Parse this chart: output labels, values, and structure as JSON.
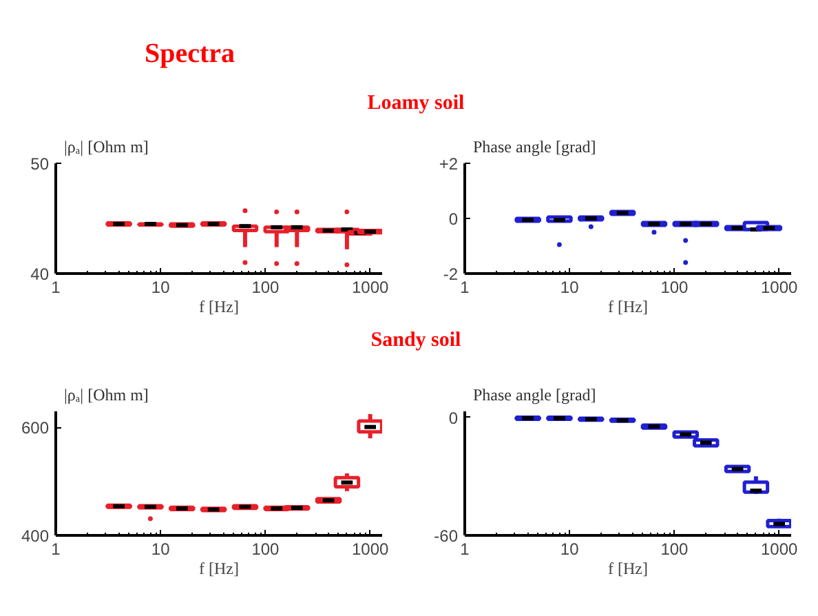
{
  "chart_data": [
    {
      "type": "box",
      "title": "Loamy soil",
      "annotations": [
        "Spectra"
      ],
      "ylabel": "|ρₐ| [Ohm m]",
      "xlabel": "f [Hz]",
      "log": "x",
      "grid": false,
      "xlim": [
        1,
        1300
      ],
      "xticks": [
        1,
        10,
        100,
        1000
      ],
      "ylim": [
        40,
        50
      ],
      "yticks": [
        40,
        50
      ],
      "series": [
        {
          "color": "#e8202a",
          "x": [
            4,
            8,
            16,
            32,
            64,
            128,
            200,
            400,
            600,
            800,
            1000
          ],
          "boxes": [
            {
              "low": 44.4,
              "q1": 44.4,
              "median": 44.5,
              "q3": 44.6,
              "high": 44.6
            },
            {
              "low": 44.4,
              "q1": 44.4,
              "median": 44.5,
              "q3": 44.5,
              "high": 44.6
            },
            {
              "low": 44.3,
              "q1": 44.3,
              "median": 44.4,
              "q3": 44.5,
              "high": 44.5
            },
            {
              "low": 44.4,
              "q1": 44.4,
              "median": 44.5,
              "q3": 44.6,
              "high": 44.6
            },
            {
              "low": 42.4,
              "q1": 43.9,
              "median": 44.3,
              "q3": 44.3,
              "high": 44.4,
              "outliers": [
                45.7,
                41.0
              ]
            },
            {
              "low": 42.4,
              "q1": 43.8,
              "median": 44.2,
              "q3": 44.2,
              "high": 44.3,
              "outliers": [
                45.6,
                40.9
              ]
            },
            {
              "low": 42.4,
              "q1": 43.9,
              "median": 44.2,
              "q3": 44.2,
              "high": 44.3,
              "outliers": [
                45.6,
                40.9
              ]
            },
            {
              "low": 43.8,
              "q1": 43.8,
              "median": 43.9,
              "q3": 44.0,
              "high": 44.0
            },
            {
              "low": 42.2,
              "q1": 43.8,
              "median": 44.0,
              "q3": 44.0,
              "high": 44.1,
              "outliers": [
                45.6,
                40.8
              ]
            },
            {
              "low": 43.6,
              "q1": 43.6,
              "median": 43.7,
              "q3": 43.8,
              "high": 43.8
            },
            {
              "low": 43.7,
              "q1": 43.7,
              "median": 43.8,
              "q3": 43.9,
              "high": 43.9
            }
          ]
        }
      ]
    },
    {
      "type": "box",
      "ylabel": "Phase angle [grad]",
      "xlabel": "f [Hz]",
      "log": "x",
      "grid": false,
      "xlim": [
        1,
        1300
      ],
      "xticks": [
        1,
        10,
        100,
        1000
      ],
      "ylim": [
        -2,
        2
      ],
      "yticks": [
        -2,
        0,
        {
          "value": 2,
          "label": "+2"
        }
      ],
      "series": [
        {
          "color": "#2020d0",
          "x": [
            4,
            8,
            16,
            32,
            64,
            128,
            200,
            400,
            600,
            800
          ],
          "boxes": [
            {
              "low": -0.1,
              "q1": -0.1,
              "median": -0.05,
              "q3": 0.0,
              "high": 0.0
            },
            {
              "low": -0.15,
              "q1": -0.1,
              "median": -0.05,
              "q3": 0.05,
              "high": 0.05,
              "outliers": [
                -0.95
              ]
            },
            {
              "low": -0.05,
              "q1": -0.05,
              "median": 0.0,
              "q3": 0.05,
              "high": 0.05,
              "outliers": [
                -0.3
              ]
            },
            {
              "low": 0.15,
              "q1": 0.15,
              "median": 0.2,
              "q3": 0.25,
              "high": 0.25
            },
            {
              "low": -0.25,
              "q1": -0.25,
              "median": -0.2,
              "q3": -0.15,
              "high": -0.15,
              "outliers": [
                -0.5
              ]
            },
            {
              "low": -0.25,
              "q1": -0.25,
              "median": -0.2,
              "q3": -0.15,
              "high": -0.15,
              "outliers": [
                -0.8,
                -1.6
              ]
            },
            {
              "low": -0.25,
              "q1": -0.25,
              "median": -0.2,
              "q3": -0.15,
              "high": -0.15
            },
            {
              "low": -0.4,
              "q1": -0.4,
              "median": -0.35,
              "q3": -0.3,
              "high": -0.3
            },
            {
              "low": -0.45,
              "q1": -0.4,
              "median": -0.4,
              "q3": -0.15,
              "high": -0.15
            },
            {
              "low": -0.4,
              "q1": -0.4,
              "median": -0.35,
              "q3": -0.3,
              "high": -0.3
            }
          ]
        }
      ]
    },
    {
      "type": "box",
      "title": "Sandy soil",
      "ylabel": "|ρₐ| [Ohm m]",
      "xlabel": "f [Hz]",
      "log": "x",
      "grid": false,
      "xlim": [
        1,
        1300
      ],
      "xticks": [
        1,
        10,
        100,
        1000
      ],
      "ylim": [
        400,
        630
      ],
      "yticks": [
        400,
        600
      ],
      "series": [
        {
          "color": "#e8202a",
          "x": [
            4,
            8,
            16,
            32,
            64,
            128,
            200,
            400,
            600,
            1000
          ],
          "boxes": [
            {
              "low": 452,
              "q1": 452,
              "median": 454,
              "q3": 456,
              "high": 456
            },
            {
              "low": 451,
              "q1": 451,
              "median": 453,
              "q3": 455,
              "high": 455,
              "outliers": [
                431
              ]
            },
            {
              "low": 448,
              "q1": 448,
              "median": 450,
              "q3": 452,
              "high": 452
            },
            {
              "low": 446,
              "q1": 446,
              "median": 448,
              "q3": 450,
              "high": 450
            },
            {
              "low": 450,
              "q1": 450,
              "median": 453,
              "q3": 455,
              "high": 455
            },
            {
              "low": 448,
              "q1": 448,
              "median": 450,
              "q3": 452,
              "high": 452
            },
            {
              "low": 449,
              "q1": 449,
              "median": 451,
              "q3": 453,
              "high": 453
            },
            {
              "low": 462,
              "q1": 462,
              "median": 465,
              "q3": 468,
              "high": 468
            },
            {
              "low": 482,
              "q1": 490,
              "median": 498,
              "q3": 507,
              "high": 515
            },
            {
              "low": 580,
              "q1": 592,
              "median": 601,
              "q3": 612,
              "high": 625
            }
          ]
        }
      ]
    },
    {
      "type": "box",
      "ylabel": "Phase angle [grad]",
      "xlabel": "f [Hz]",
      "log": "x",
      "grid": false,
      "xlim": [
        1,
        1300
      ],
      "xticks": [
        1,
        10,
        100,
        1000
      ],
      "ylim": [
        -60,
        3
      ],
      "yticks": [
        -60,
        0
      ],
      "series": [
        {
          "color": "#2020d0",
          "x": [
            4,
            8,
            16,
            32,
            64,
            128,
            200,
            400,
            600,
            1000
          ],
          "boxes": [
            {
              "low": -1,
              "q1": -1,
              "median": -0.5,
              "q3": 0,
              "high": 0
            },
            {
              "low": -1,
              "q1": -1,
              "median": -0.5,
              "q3": 0,
              "high": 0
            },
            {
              "low": -1.5,
              "q1": -1.5,
              "median": -1,
              "q3": -0.5,
              "high": -0.5
            },
            {
              "low": -2,
              "q1": -2,
              "median": -1.6,
              "q3": -1,
              "high": -1
            },
            {
              "low": -5.5,
              "q1": -5.5,
              "median": -4.7,
              "q3": -4,
              "high": -4
            },
            {
              "low": -10,
              "q1": -10,
              "median": -8.7,
              "q3": -7.5,
              "high": -7.5
            },
            {
              "low": -14.5,
              "q1": -14.5,
              "median": -12.9,
              "q3": -11.5,
              "high": -11.5
            },
            {
              "low": -27.5,
              "q1": -27.5,
              "median": -26.3,
              "q3": -25,
              "high": -25
            },
            {
              "low": -39,
              "q1": -38,
              "median": -37.3,
              "q3": -33,
              "high": -30
            },
            {
              "low": -56,
              "q1": -55.5,
              "median": -54.2,
              "q3": -52.5,
              "high": -51.5
            }
          ]
        }
      ]
    }
  ]
}
